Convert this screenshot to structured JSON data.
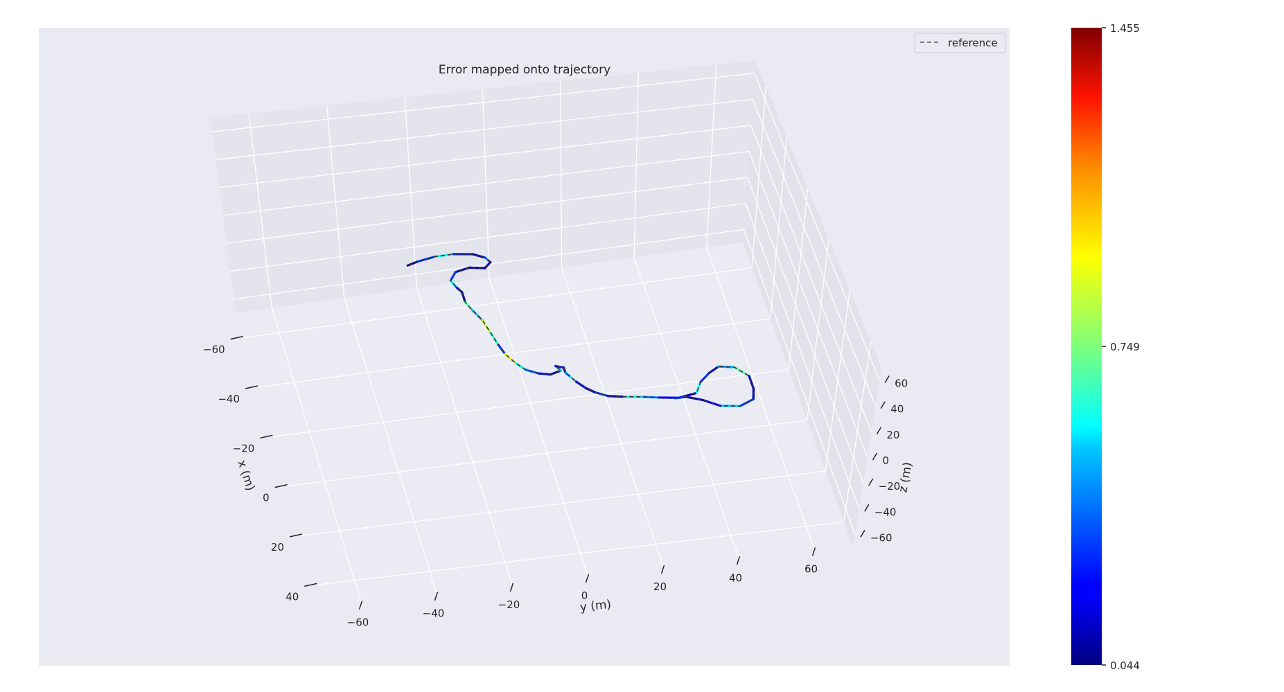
{
  "chart_data": {
    "type": "line",
    "projection": "3d",
    "title": "Error mapped onto trajectory",
    "xlabel": "x (m)",
    "ylabel": "y (m)",
    "zlabel": "z (m)",
    "x_ticks": [
      "−60",
      "−40",
      "−20",
      "0",
      "20",
      "40"
    ],
    "y_ticks": [
      "−60",
      "−40",
      "−20",
      "0",
      "20",
      "40",
      "60"
    ],
    "z_ticks": [
      "−60",
      "−40",
      "−20",
      "0",
      "20",
      "40",
      "60"
    ],
    "grid": true,
    "legend": {
      "position": "top-right",
      "entries": [
        {
          "label": "reference",
          "style": "dashed",
          "color": "#555555"
        }
      ]
    },
    "colorbar": {
      "colormap": "jet",
      "min": 0.044,
      "max": 1.455,
      "ticks": [
        "1.455",
        "0.749",
        "0.044"
      ]
    },
    "trajectory": [
      [
        -45,
        -28
      ],
      [
        -46,
        -25
      ],
      [
        -47,
        -20
      ],
      [
        -47,
        -15
      ],
      [
        -46,
        -10
      ],
      [
        -44,
        -7
      ],
      [
        -42,
        -6
      ],
      [
        -40,
        -8
      ],
      [
        -41,
        -12
      ],
      [
        -40,
        -16
      ],
      [
        -37,
        -18
      ],
      [
        -34,
        -17
      ],
      [
        -32,
        -16
      ],
      [
        -28,
        -16
      ],
      [
        -25,
        -15
      ],
      [
        -20,
        -13
      ],
      [
        -15,
        -12
      ],
      [
        -10,
        -11
      ],
      [
        -6,
        -10
      ],
      [
        -2,
        -8
      ],
      [
        1,
        -6
      ],
      [
        3,
        -3
      ],
      [
        4,
        0
      ],
      [
        3,
        3
      ],
      [
        1,
        2
      ],
      [
        2,
        4
      ],
      [
        4,
        4
      ],
      [
        6,
        5
      ],
      [
        8,
        6
      ],
      [
        11,
        8
      ],
      [
        13,
        10
      ],
      [
        15,
        13
      ],
      [
        16,
        17
      ],
      [
        17,
        22
      ],
      [
        18,
        26
      ],
      [
        19,
        31
      ],
      [
        18,
        36
      ],
      [
        14,
        38
      ],
      [
        11,
        41
      ],
      [
        9,
        44
      ],
      [
        10,
        48
      ],
      [
        14,
        51
      ],
      [
        19,
        51
      ],
      [
        23,
        50
      ],
      [
        25,
        46
      ],
      [
        24,
        41
      ],
      [
        21,
        37
      ],
      [
        19,
        33
      ],
      [
        19,
        30
      ]
    ],
    "error": [
      0.12,
      0.3,
      0.6,
      0.25,
      0.1,
      0.4,
      0.2,
      0.1,
      0.15,
      0.3,
      0.55,
      0.2,
      0.1,
      0.7,
      0.5,
      0.85,
      0.65,
      0.3,
      0.9,
      0.6,
      0.35,
      0.2,
      0.1,
      0.5,
      0.25,
      0.15,
      0.4,
      0.6,
      0.2,
      0.1,
      0.3,
      0.15,
      0.55,
      0.4,
      0.2,
      0.1,
      0.6,
      0.3,
      0.15,
      0.45,
      0.7,
      0.2,
      0.1,
      0.3,
      0.5,
      0.2,
      0.12,
      0.3,
      0.1
    ]
  }
}
